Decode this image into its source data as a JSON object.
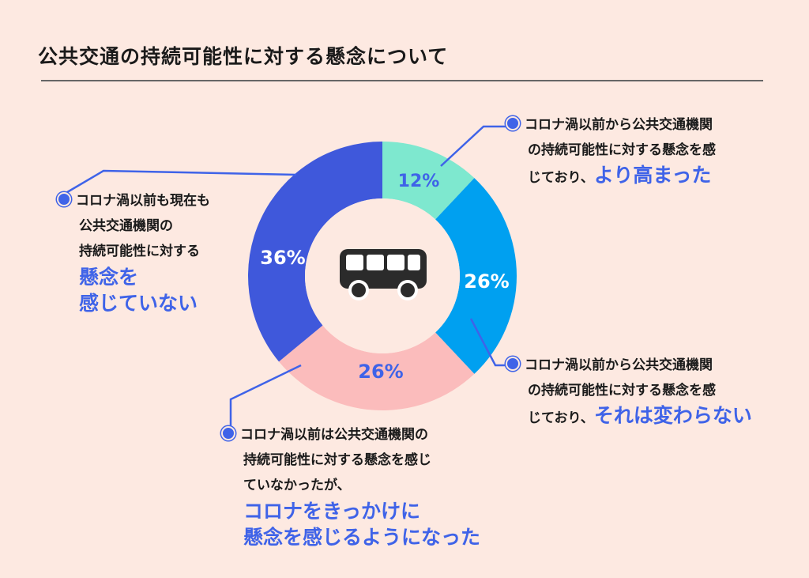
{
  "title": "公共交通の持続可能性に対する懸念について",
  "center_icon": "bus-icon",
  "colors": {
    "accent": "#3f63e8",
    "slice_rose": "#7ee8cf",
    "slice_same": "#00a0f0",
    "slice_new": "#fbbcbc",
    "slice_none": "#3f58db"
  },
  "chart_data": {
    "type": "pie",
    "variant": "donut",
    "title": "公共交通の持続可能性に対する懸念について",
    "unit": "%",
    "slices": [
      {
        "label": "コロナ渦以前から公共交通機関の持続可能性に対する懸念を感じており、より高まった",
        "value": 12,
        "display": "12%"
      },
      {
        "label": "コロナ渦以前から公共交通機関の持続可能性に対する懸念を感じており、それは変わらない",
        "value": 26,
        "display": "26%"
      },
      {
        "label": "コロナ渦以前は公共交通機関の持続可能性に対する懸念を感じていなかったが、コロナをきっかけに懸念を感じるようになった",
        "value": 26,
        "display": "26%"
      },
      {
        "label": "コロナ渦以前も現在も公共交通機関の持続可能性に対する懸念を感じていない",
        "value": 36,
        "display": "36%"
      }
    ]
  },
  "labels": {
    "rose": {
      "line1": "コロナ渦以前から公共交通機関",
      "line2": "の持続可能性に対する懸念を感",
      "line3": "じており、",
      "highlight": "より高まった"
    },
    "same": {
      "line1": "コロナ渦以前から公共交通機関",
      "line2": "の持続可能性に対する懸念を感",
      "line3": "じており、",
      "highlight": "それは変わらない"
    },
    "new": {
      "line1": "コロナ渦以前は公共交通機関の",
      "line2": "持続可能性に対する懸念を感じ",
      "line3": "ていなかったが、",
      "highlight1": "コロナをきっかけに",
      "highlight2": "懸念を感じるようになった"
    },
    "none": {
      "line1": "コロナ渦以前も現在も",
      "line2": "公共交通機関の",
      "line3": "持続可能性に対する",
      "highlight1": "懸念を",
      "highlight2": "感じていない"
    }
  }
}
